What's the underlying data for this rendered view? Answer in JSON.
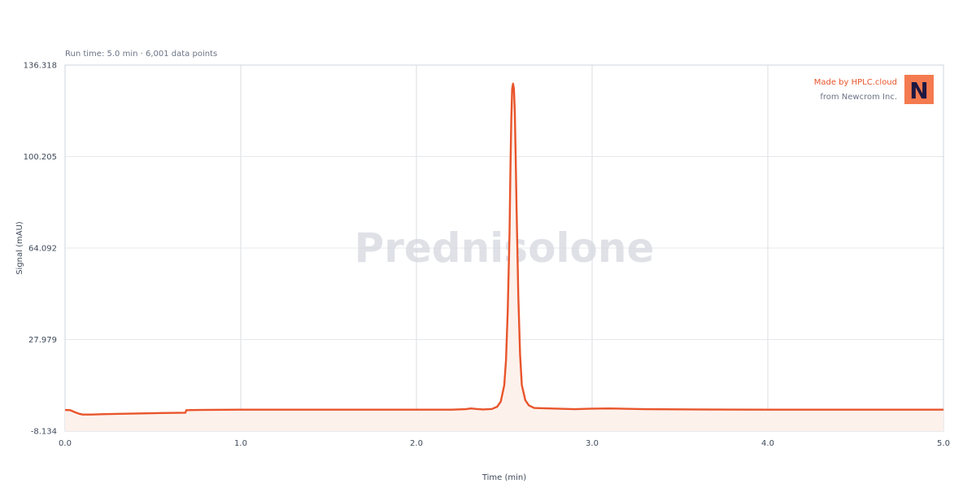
{
  "subtitle": "Run time: 5.0 min · 6,001 data points",
  "watermark": "Prednisolone",
  "credit": {
    "made_by": "Made by HPLC.cloud",
    "from": "from Newcrom Inc.",
    "logo_letter": "N",
    "logo_color": "#f47a4f",
    "logo_letter_color": "#1d1842"
  },
  "colors": {
    "trace": "#e8552b",
    "fill": "#fdf1ec",
    "grid": "#e6e8ec",
    "frame": "#cfd4dc"
  },
  "chart_data": {
    "type": "line",
    "title": "",
    "xlabel": "Time (min)",
    "ylabel": "Signal (mAU)",
    "xlim": [
      0,
      5.0
    ],
    "ylim": [
      -8.134,
      136.318
    ],
    "x_ticks": [
      0,
      1,
      2,
      3,
      4,
      5
    ],
    "x_tick_labels": [
      "0.0",
      "1.0",
      "2.0",
      "3.0",
      "4.0",
      "5.0"
    ],
    "y_ticks": [
      -8.134,
      27.979,
      64.092,
      100.205,
      136.318
    ],
    "y_tick_labels": [
      "-8.134",
      "27.979",
      "64.092",
      "100.205",
      "136.318"
    ],
    "grid": true,
    "series": [
      {
        "x": [
          0,
          0.03,
          0.06,
          0.08,
          0.1,
          0.15,
          0.25,
          0.4,
          0.55,
          0.685,
          0.69,
          0.75,
          1.0,
          1.5,
          2.0,
          2.2,
          2.28,
          2.31,
          2.34,
          2.38,
          2.43,
          2.46,
          2.48,
          2.5,
          2.51,
          2.52,
          2.53,
          2.535,
          2.54,
          2.545,
          2.55,
          2.555,
          2.56,
          2.565,
          2.57,
          2.58,
          2.59,
          2.6,
          2.62,
          2.64,
          2.67,
          2.7,
          2.8,
          2.9,
          3.0,
          3.1,
          3.3,
          3.6,
          4.0,
          4.5,
          5.0
        ],
        "y": [
          0.2,
          0.1,
          -0.8,
          -1.3,
          -1.6,
          -1.6,
          -1.4,
          -1.2,
          -1.0,
          -0.9,
          0.1,
          0.2,
          0.3,
          0.3,
          0.3,
          0.3,
          0.5,
          0.8,
          0.6,
          0.4,
          0.6,
          1.5,
          3.5,
          10,
          20,
          40,
          70,
          95,
          115,
          127,
          129,
          127,
          118,
          100,
          80,
          45,
          22,
          10,
          4,
          2,
          1.0,
          0.9,
          0.7,
          0.5,
          0.7,
          0.8,
          0.5,
          0.4,
          0.3,
          0.3,
          0.3
        ]
      }
    ]
  }
}
